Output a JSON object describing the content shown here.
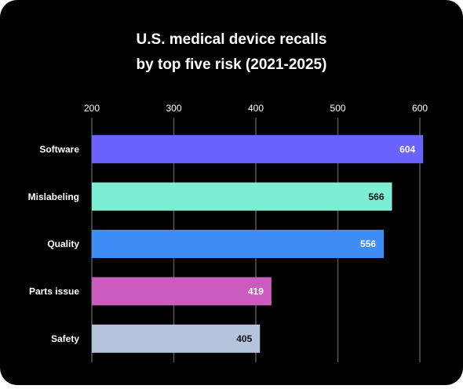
{
  "chart_data": {
    "type": "bar",
    "orientation": "horizontal",
    "title": [
      "U.S. medical device recalls",
      "by top five risk (2021-2025)"
    ],
    "categories": [
      "Software",
      "Mislabeling",
      "Quality",
      "Parts issue",
      "Safety"
    ],
    "values": [
      604,
      566,
      556,
      419,
      405
    ],
    "colors": [
      "#6b63ff",
      "#7deed3",
      "#3f8ef7",
      "#cc5bbf",
      "#b4c4dd"
    ],
    "xlim": [
      200,
      610
    ],
    "xticks": [
      200,
      300,
      400,
      500,
      600
    ],
    "grid": true
  }
}
